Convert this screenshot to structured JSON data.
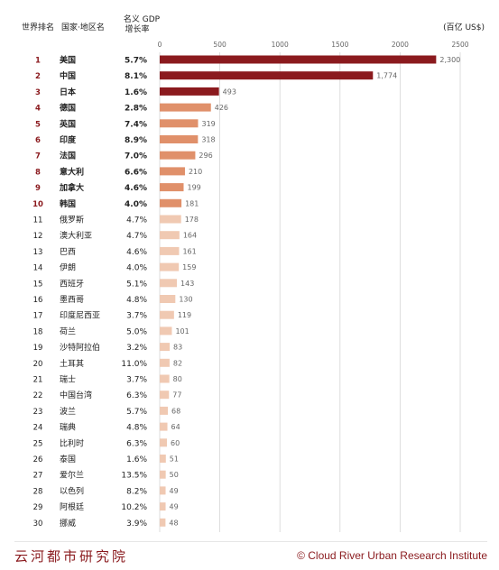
{
  "header": {
    "rank_col": "世界排名",
    "name_col": "国家·地区名",
    "growth_col_line1": "名义 GDP",
    "growth_col_line2": "增长率",
    "unit": "(百亿 US$)"
  },
  "chart_data": {
    "type": "bar",
    "orientation": "horizontal",
    "xlim": [
      0,
      2500
    ],
    "xticks": [
      0,
      500,
      1000,
      1500,
      2000,
      2500
    ],
    "grid": true,
    "colors": {
      "top3": "#8b1a1e",
      "rank4_10": "#e0906a",
      "rank11_30": "#f0c9b2"
    },
    "rows": [
      {
        "rank": "1",
        "name": "美国",
        "growth": "5.7%",
        "value": 2300,
        "label": "2,300"
      },
      {
        "rank": "2",
        "name": "中国",
        "growth": "8.1%",
        "value": 1774,
        "label": "1,774"
      },
      {
        "rank": "3",
        "name": "日本",
        "growth": "1.6%",
        "value": 493,
        "label": "493"
      },
      {
        "rank": "4",
        "name": "德国",
        "growth": "2.8%",
        "value": 426,
        "label": "426"
      },
      {
        "rank": "5",
        "name": "英国",
        "growth": "7.4%",
        "value": 319,
        "label": "319"
      },
      {
        "rank": "6",
        "name": "印度",
        "growth": "8.9%",
        "value": 318,
        "label": "318"
      },
      {
        "rank": "7",
        "name": "法国",
        "growth": "7.0%",
        "value": 296,
        "label": "296"
      },
      {
        "rank": "8",
        "name": "意大利",
        "growth": "6.6%",
        "value": 210,
        "label": "210"
      },
      {
        "rank": "9",
        "name": "加拿大",
        "growth": "4.6%",
        "value": 199,
        "label": "199"
      },
      {
        "rank": "10",
        "name": "韩国",
        "growth": "4.0%",
        "value": 181,
        "label": "181"
      },
      {
        "rank": "11",
        "name": "俄罗斯",
        "growth": "4.7%",
        "value": 178,
        "label": "178"
      },
      {
        "rank": "12",
        "name": "澳大利亚",
        "growth": "4.7%",
        "value": 164,
        "label": "164"
      },
      {
        "rank": "13",
        "name": "巴西",
        "growth": "4.6%",
        "value": 161,
        "label": "161"
      },
      {
        "rank": "14",
        "name": "伊朗",
        "growth": "4.0%",
        "value": 159,
        "label": "159"
      },
      {
        "rank": "15",
        "name": "西班牙",
        "growth": "5.1%",
        "value": 143,
        "label": "143"
      },
      {
        "rank": "16",
        "name": "墨西哥",
        "growth": "4.8%",
        "value": 130,
        "label": "130"
      },
      {
        "rank": "17",
        "name": "印度尼西亚",
        "growth": "3.7%",
        "value": 119,
        "label": "119"
      },
      {
        "rank": "18",
        "name": "荷兰",
        "growth": "5.0%",
        "value": 101,
        "label": "101"
      },
      {
        "rank": "19",
        "name": "沙特阿拉伯",
        "growth": "3.2%",
        "value": 83,
        "label": "83"
      },
      {
        "rank": "20",
        "name": "土耳其",
        "growth": "11.0%",
        "value": 82,
        "label": "82"
      },
      {
        "rank": "21",
        "name": "瑞士",
        "growth": "3.7%",
        "value": 80,
        "label": "80"
      },
      {
        "rank": "22",
        "name": "中国台湾",
        "growth": "6.3%",
        "value": 77,
        "label": "77"
      },
      {
        "rank": "23",
        "name": "波兰",
        "growth": "5.7%",
        "value": 68,
        "label": "68"
      },
      {
        "rank": "24",
        "name": "瑞典",
        "growth": "4.8%",
        "value": 64,
        "label": "64"
      },
      {
        "rank": "25",
        "name": "比利时",
        "growth": "6.3%",
        "value": 60,
        "label": "60"
      },
      {
        "rank": "26",
        "name": "泰国",
        "growth": "1.6%",
        "value": 51,
        "label": "51"
      },
      {
        "rank": "27",
        "name": "爱尔兰",
        "growth": "13.5%",
        "value": 50,
        "label": "50"
      },
      {
        "rank": "28",
        "name": "以色列",
        "growth": "8.2%",
        "value": 49,
        "label": "49"
      },
      {
        "rank": "29",
        "name": "阿根廷",
        "growth": "10.2%",
        "value": 49,
        "label": "49"
      },
      {
        "rank": "30",
        "name": "挪威",
        "growth": "3.9%",
        "value": 48,
        "label": "48"
      }
    ]
  },
  "footer": {
    "brand_cn": "云河都市研究院",
    "copyright": "© Cloud River Urban Research Institute"
  }
}
